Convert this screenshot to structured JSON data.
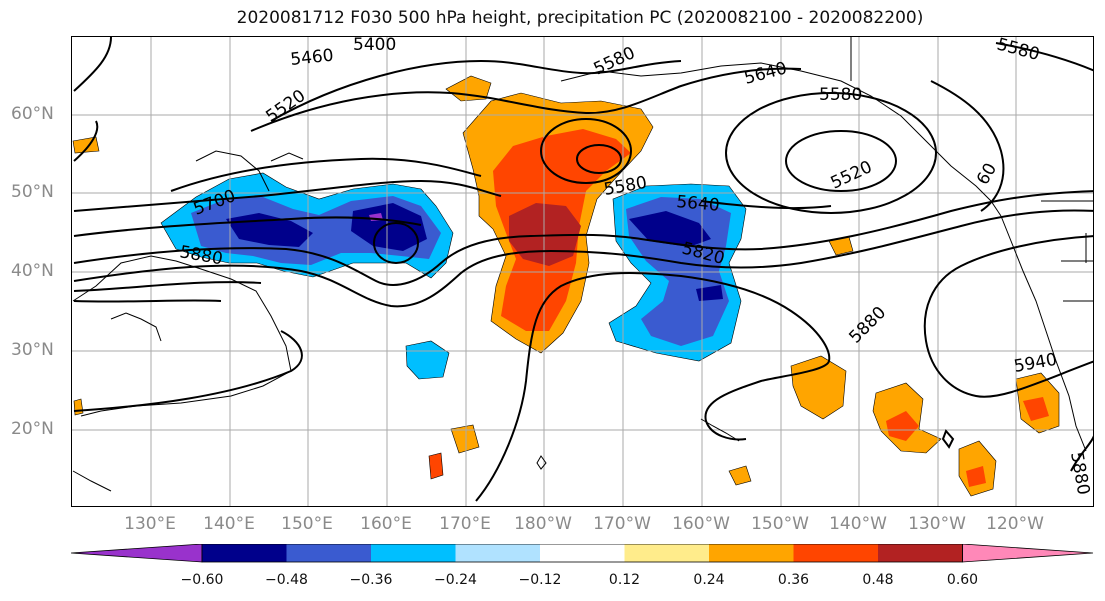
{
  "title": "2020081712 F030 500 hPa height, precipitation PC (2020082100 - 2020082200)",
  "lat_labels": [
    "60°N",
    "50°N",
    "40°N",
    "30°N",
    "20°N"
  ],
  "lon_labels": [
    "130°E",
    "140°E",
    "150°E",
    "160°E",
    "170°E",
    "180°W",
    "170°W",
    "160°W",
    "150°W",
    "140°W",
    "130°W",
    "120°W"
  ],
  "contour_labels": [
    "5400",
    "5460",
    "5520",
    "5580",
    "5640",
    "5700",
    "5820",
    "5880",
    "5940",
    "5580",
    "5640",
    "5580",
    "5520",
    "5880",
    "5580",
    "5880",
    "60"
  ],
  "colorbar": {
    "ticks": [
      "−0.60",
      "−0.48",
      "−0.36",
      "−0.24",
      "−0.12",
      "0.12",
      "0.24",
      "0.36",
      "0.48",
      "0.60"
    ],
    "colors": [
      "#9932cc",
      "#00008b",
      "#3a5bd0",
      "#00bfff",
      "#b0e2ff",
      "#ffffff",
      "#ffec8b",
      "#ffa500",
      "#ff4500",
      "#b22222",
      "#ff88b8"
    ]
  }
}
